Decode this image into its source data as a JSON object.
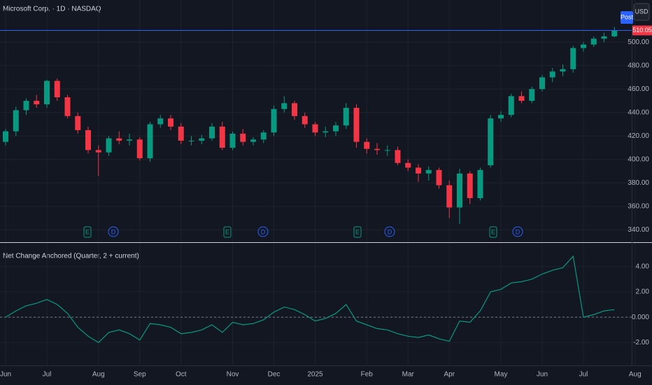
{
  "header": {
    "symbol_title": "Microsoft Corp. · 1D · NASDAQ",
    "session_badge": "Post",
    "currency": "USD",
    "last_price_label": "510.05",
    "event_labels": [
      "E",
      "D",
      "E",
      "D",
      "E",
      "D",
      "E",
      "D"
    ]
  },
  "chart_data": [
    {
      "type": "candlestick",
      "categories": [
        "Jun",
        null,
        null,
        null,
        "Jul",
        null,
        null,
        null,
        null,
        "Aug",
        null,
        null,
        null,
        "Sep",
        null,
        null,
        null,
        "Oct",
        null,
        null,
        null,
        null,
        "Nov",
        null,
        null,
        null,
        "Dec",
        null,
        null,
        null,
        "2025",
        null,
        null,
        null,
        null,
        "Feb",
        null,
        null,
        null,
        "Mar",
        null,
        null,
        null,
        "Apr",
        null,
        null,
        null,
        null,
        "May",
        null,
        null,
        null,
        "Jun",
        null,
        null,
        null,
        "Jul",
        null,
        null,
        null,
        null,
        "Aug"
      ],
      "open": [
        415,
        424,
        442,
        450,
        447,
        467,
        453,
        437,
        425,
        408,
        406,
        418,
        416,
        417,
        401,
        430,
        435,
        428,
        416,
        416,
        418,
        428,
        410,
        422,
        415,
        417,
        423,
        443,
        448,
        437,
        430,
        423,
        424,
        429,
        444,
        415,
        409,
        408,
        408,
        397,
        393,
        388,
        391,
        378,
        359,
        388,
        367,
        395,
        435,
        438,
        454,
        450,
        460,
        470,
        475,
        477,
        495,
        498,
        503,
        505,
        null,
        null
      ],
      "high": [
        426,
        445,
        452,
        455,
        468,
        469,
        455,
        440,
        428,
        412,
        420,
        424,
        422,
        419,
        432,
        438,
        438,
        431,
        420,
        421,
        431,
        432,
        424,
        426,
        419,
        425,
        446,
        454,
        450,
        440,
        432,
        428,
        432,
        448,
        447,
        418,
        414,
        412,
        411,
        400,
        396,
        394,
        393,
        382,
        392,
        390,
        393,
        438,
        441,
        456,
        458,
        462,
        472,
        478,
        481,
        497,
        500,
        505,
        508,
        513,
        null,
        null
      ],
      "low": [
        412,
        420,
        438,
        444,
        444,
        450,
        435,
        422,
        405,
        386,
        403,
        413,
        412,
        399,
        398,
        427,
        425,
        413,
        412,
        413,
        416,
        408,
        408,
        412,
        412,
        414,
        420,
        440,
        434,
        427,
        420,
        419,
        420,
        426,
        410,
        405,
        404,
        403,
        395,
        390,
        381,
        382,
        375,
        350,
        345,
        362,
        365,
        393,
        432,
        436,
        448,
        448,
        458,
        466,
        471,
        474,
        492,
        496,
        500,
        504,
        null,
        null
      ],
      "close": [
        424,
        442,
        450,
        447,
        467,
        453,
        437,
        425,
        408,
        406,
        418,
        416,
        417,
        401,
        430,
        435,
        428,
        416,
        416,
        418,
        428,
        410,
        422,
        415,
        417,
        423,
        443,
        448,
        437,
        430,
        423,
        424,
        429,
        444,
        415,
        409,
        408,
        408,
        397,
        393,
        388,
        391,
        378,
        359,
        388,
        367,
        391,
        435,
        438,
        454,
        450,
        460,
        470,
        475,
        477,
        495,
        498,
        503,
        505,
        510.05,
        null,
        null
      ],
      "up_color": "#089981",
      "down_color": "#f23645",
      "ylim": [
        330,
        536
      ],
      "yticks": [
        {
          "value": 340,
          "label": "340.00"
        },
        {
          "value": 360,
          "label": "360.00"
        },
        {
          "value": 380,
          "label": "380.00"
        },
        {
          "value": 400,
          "label": "400.00"
        },
        {
          "value": 420,
          "label": "420.00"
        },
        {
          "value": 440,
          "label": "440.00"
        },
        {
          "value": 460,
          "label": "460.00"
        },
        {
          "value": 480,
          "label": "480.00"
        },
        {
          "value": 500,
          "label": "500.00"
        }
      ],
      "last_price": 510.05,
      "grid": true
    },
    {
      "type": "line",
      "title": "Net Change Anchored (Quarter, 2 + current)",
      "values": [
        0.0,
        0.5,
        0.9,
        1.1,
        1.4,
        1.0,
        0.3,
        -0.8,
        -1.5,
        -2.0,
        -1.2,
        -1.0,
        -1.3,
        -1.8,
        -0.5,
        -0.6,
        -0.8,
        -1.3,
        -1.2,
        -1.0,
        -0.6,
        -1.2,
        -0.4,
        -0.6,
        -0.5,
        -0.2,
        0.4,
        0.8,
        0.6,
        0.2,
        -0.3,
        -0.1,
        0.3,
        1.0,
        -0.3,
        -0.6,
        -0.9,
        -1.0,
        -1.3,
        -1.5,
        -1.6,
        -1.4,
        -1.7,
        -1.9,
        -0.3,
        -0.4,
        0.5,
        2.0,
        2.2,
        2.7,
        2.8,
        3.0,
        3.4,
        3.7,
        3.9,
        4.8,
        0.0,
        0.2,
        0.5,
        0.6,
        null,
        null
      ],
      "color": "#089981",
      "ylim": [
        -3.8,
        5.8
      ],
      "yticks": [
        {
          "value": -2,
          "label": "-2.00"
        },
        {
          "value": 0,
          "label": "0.000"
        },
        {
          "value": 2,
          "label": "2.00"
        },
        {
          "value": 4,
          "label": "4.00"
        }
      ],
      "grid": true
    }
  ]
}
